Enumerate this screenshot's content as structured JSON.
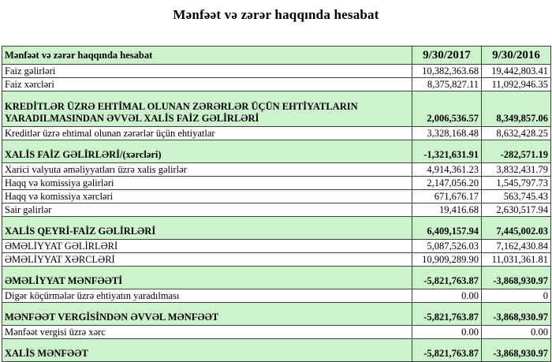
{
  "title": "Mənfəət və zərər haqqında hesabat",
  "colors": {
    "summary_bg": "#cdf3cd",
    "border": "#3e3e3e"
  },
  "table": {
    "header": {
      "label": "Mənfəət və zərər haqqında hesabat",
      "col_2017": "9/30/2017",
      "col_2016": "9/30/2016"
    },
    "rows": [
      {
        "label": "Faiz gəlirləri",
        "v2017": "10,382,363.68",
        "v2016": "19,442,803.41",
        "style": "normal"
      },
      {
        "label": "Faiz xərcləri",
        "v2017": "8,375,827.11",
        "v2016": "11,092,946.35",
        "style": "normal"
      },
      {
        "label": "KREDİTLƏR ÜZRƏ EHTİMAL OLUNAN ZƏRƏRLƏR ÜÇÜN EHTİYATLARIN YARADILMASINDAN ƏVVƏL XALİS FAİZ GƏLİRLƏRİ",
        "v2017": "2,006,536.57",
        "v2016": "8,349,857.06",
        "style": "summary-tall"
      },
      {
        "label": "Kreditlər üzrə ehtimal olunan zərərlər üçün ehtiyatlar",
        "v2017": "3,328,168.48",
        "v2016": "8,632,428.25",
        "style": "normal"
      },
      {
        "label": "XALİS FAİZ GƏLİRLƏRİ/(xərcləri)",
        "v2017": "-1,321,631.91",
        "v2016": "-282,571.19",
        "style": "summary"
      },
      {
        "label": "Xarici valyuta əməliyyatları üzrə xalis gəlirlər",
        "v2017": "4,914,361.23",
        "v2016": "3,832,431.79",
        "style": "normal"
      },
      {
        "label": "Haqq və komissiya gəlirləri",
        "v2017": "2,147,056.20",
        "v2016": "1,545,797.73",
        "style": "normal"
      },
      {
        "label": "Haqq və komissiya xərcləri",
        "v2017": "671,676.17",
        "v2016": "563,745.43",
        "style": "normal"
      },
      {
        "label": "Sair gəlirlər",
        "v2017": "19,416.68",
        "v2016": "2,630,517.94",
        "style": "normal"
      },
      {
        "label": "XALİS QEYRİ-FAİZ GƏLİRLƏRİ",
        "v2017": "6,409,157.94",
        "v2016": "7,445,002.03",
        "style": "summary"
      },
      {
        "label": "ƏMƏLİYYAT GƏLİRLƏRİ",
        "v2017": "5,087,526.03",
        "v2016": "7,162,430.84",
        "style": "normal"
      },
      {
        "label": "ƏMƏLİYYAT XƏRCLƏRİ",
        "v2017": "10,909,289.90",
        "v2016": "11,031,361.81",
        "style": "normal"
      },
      {
        "label": "ƏMƏLİYYAT MƏNFƏƏTİ",
        "v2017": "-5,821,763.87",
        "v2016": "-3,868,930.97",
        "style": "summary"
      },
      {
        "label": "Digər köçürmələr üzrə ehtiyatın yaradılması",
        "v2017": "0.00",
        "v2016": "0",
        "style": "normal"
      },
      {
        "label": "MƏNFƏƏT VERGİSİNDƏN ƏVVƏL MƏNFƏƏT",
        "v2017": "-5,821,763.87",
        "v2016": "-3,868,930.97",
        "style": "summary"
      },
      {
        "label": "Mənfəət vergisi üzrə xərc",
        "v2017": "0.00",
        "v2016": "0.00",
        "style": "normal"
      },
      {
        "label": "XALİS MƏNFƏƏT",
        "v2017": "-5,821,763.87",
        "v2016": "-3,868,930.97",
        "style": "summary"
      }
    ]
  }
}
